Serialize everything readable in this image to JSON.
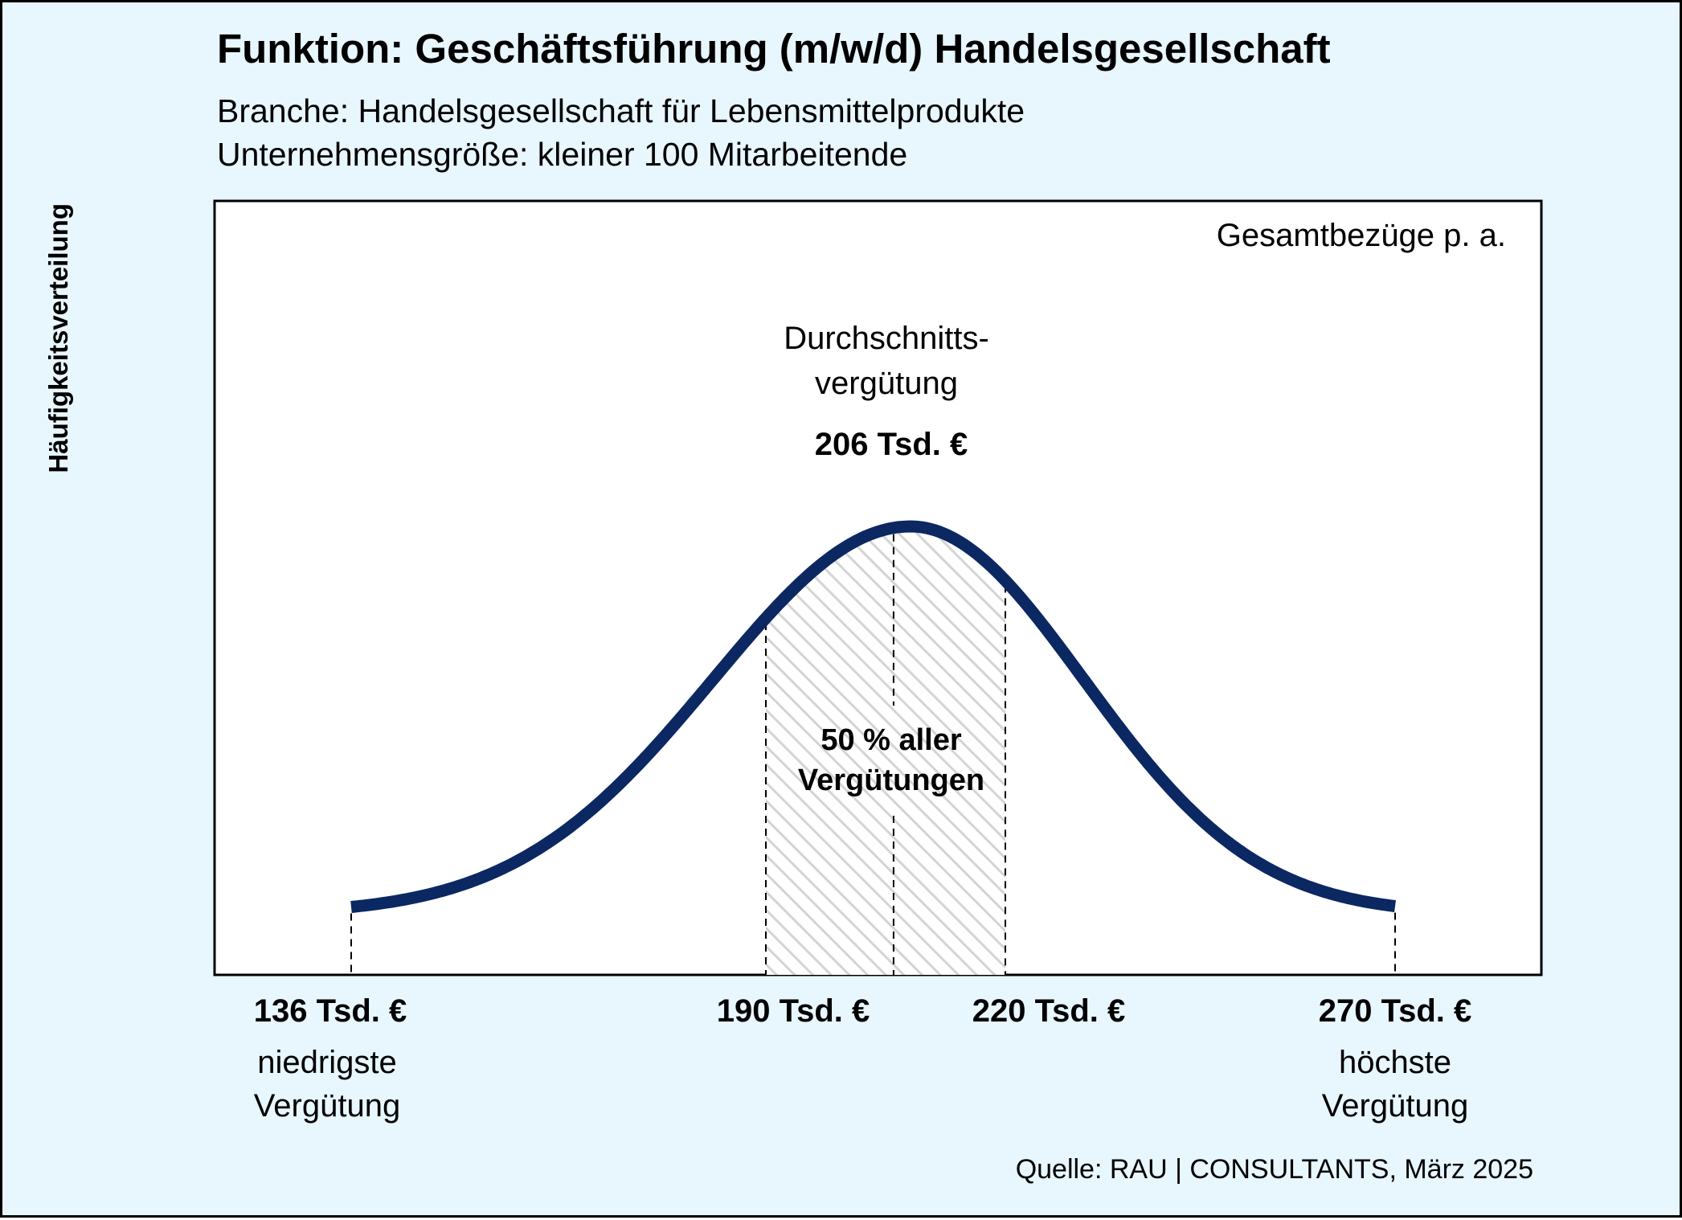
{
  "header": {
    "title": "Funktion: Geschäftsführung (m/w/d) Handelsgesellschaft",
    "subtitle_1": "Branche: Handelsgesellschaft für Lebensmittelprodukte",
    "subtitle_2": "Unternehmensgröße: kleiner 100 Mitarbeitende"
  },
  "chart_data": {
    "type": "line",
    "ylabel": "Häufigkeitsverteilung",
    "xlabel": "Gesamtbezüge p. a.",
    "curve": "bell-shaped distribution",
    "x_unit": "Tsd. €",
    "min": {
      "value": 136,
      "label": "136 Tsd. €",
      "description": "niedrigste Vergütung"
    },
    "q1": {
      "value": 190,
      "label": "190 Tsd. €"
    },
    "q3": {
      "value": 220,
      "label": "220 Tsd. €"
    },
    "max": {
      "value": 270,
      "label": "270 Tsd. €",
      "description": "höchste Vergütung"
    },
    "average": {
      "value": 206,
      "label_line1": "Durchschnitts-",
      "label_line2": "vergütung",
      "value_label": "206 Tsd. €"
    },
    "band": {
      "from": 190,
      "to": 220,
      "label_line1": "50 % aller",
      "label_line2": "Vergütungen"
    },
    "grid": false,
    "legend": "none"
  },
  "footer": {
    "source": "Quelle: RAU | CONSULTANTS, März 2025"
  },
  "colors": {
    "background": "#e8f6fd",
    "curve": "#0b2862",
    "hatch": "#d4d4d4",
    "plot_background": "#ffffff"
  }
}
